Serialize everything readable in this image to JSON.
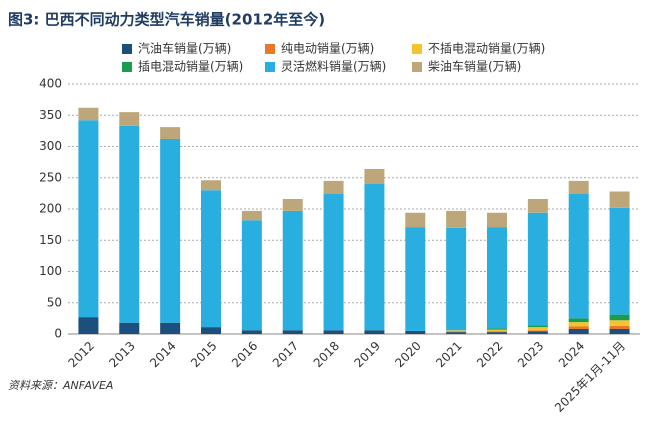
{
  "chart_data": {
    "type": "stacked_bar",
    "title": "图3: 巴西不同动力类型汽车销量(2012年至今)",
    "source": "资料来源：ANFAVEA",
    "categories": [
      "2012",
      "2013",
      "2014",
      "2015",
      "2016",
      "2017",
      "2018",
      "2019",
      "2020",
      "2021",
      "2022",
      "2023",
      "2024",
      "2025年1月-11月"
    ],
    "series": [
      {
        "name": "汽油车销量(万辆)",
        "color": "#1b4f7e",
        "values": [
          27,
          18,
          18,
          11,
          6,
          6,
          6,
          6,
          5,
          3,
          3,
          4,
          8,
          8
        ]
      },
      {
        "name": "纯电动销量(万辆)",
        "color": "#e8792a",
        "values": [
          0,
          0,
          0,
          0,
          0,
          0,
          0,
          0,
          0,
          1,
          1,
          2,
          4,
          5
        ]
      },
      {
        "name": "不插电混动销量(万辆)",
        "color": "#f3c430",
        "values": [
          0,
          0,
          0,
          0,
          0,
          0,
          0,
          0,
          0,
          2,
          3,
          5,
          7,
          9
        ]
      },
      {
        "name": "插电混动销量(万辆)",
        "color": "#1a9c4e",
        "values": [
          0,
          0,
          0,
          0,
          0,
          0,
          0,
          0,
          0,
          0,
          2,
          3,
          6,
          9
        ]
      },
      {
        "name": "灵活燃料销量(万辆)",
        "color": "#29aee0",
        "values": [
          315,
          315,
          294,
          219,
          176,
          191,
          218,
          234,
          166,
          164,
          162,
          180,
          199,
          171
        ]
      },
      {
        "name": "柴油车销量(万辆)",
        "color": "#bda77a",
        "values": [
          20,
          22,
          19,
          16,
          15,
          19,
          21,
          24,
          23,
          27,
          23,
          22,
          21,
          26
        ]
      }
    ],
    "ylim": [
      0,
      400
    ],
    "yticks": [
      0,
      50,
      100,
      150,
      200,
      250,
      300,
      350,
      400
    ],
    "grid": true
  }
}
